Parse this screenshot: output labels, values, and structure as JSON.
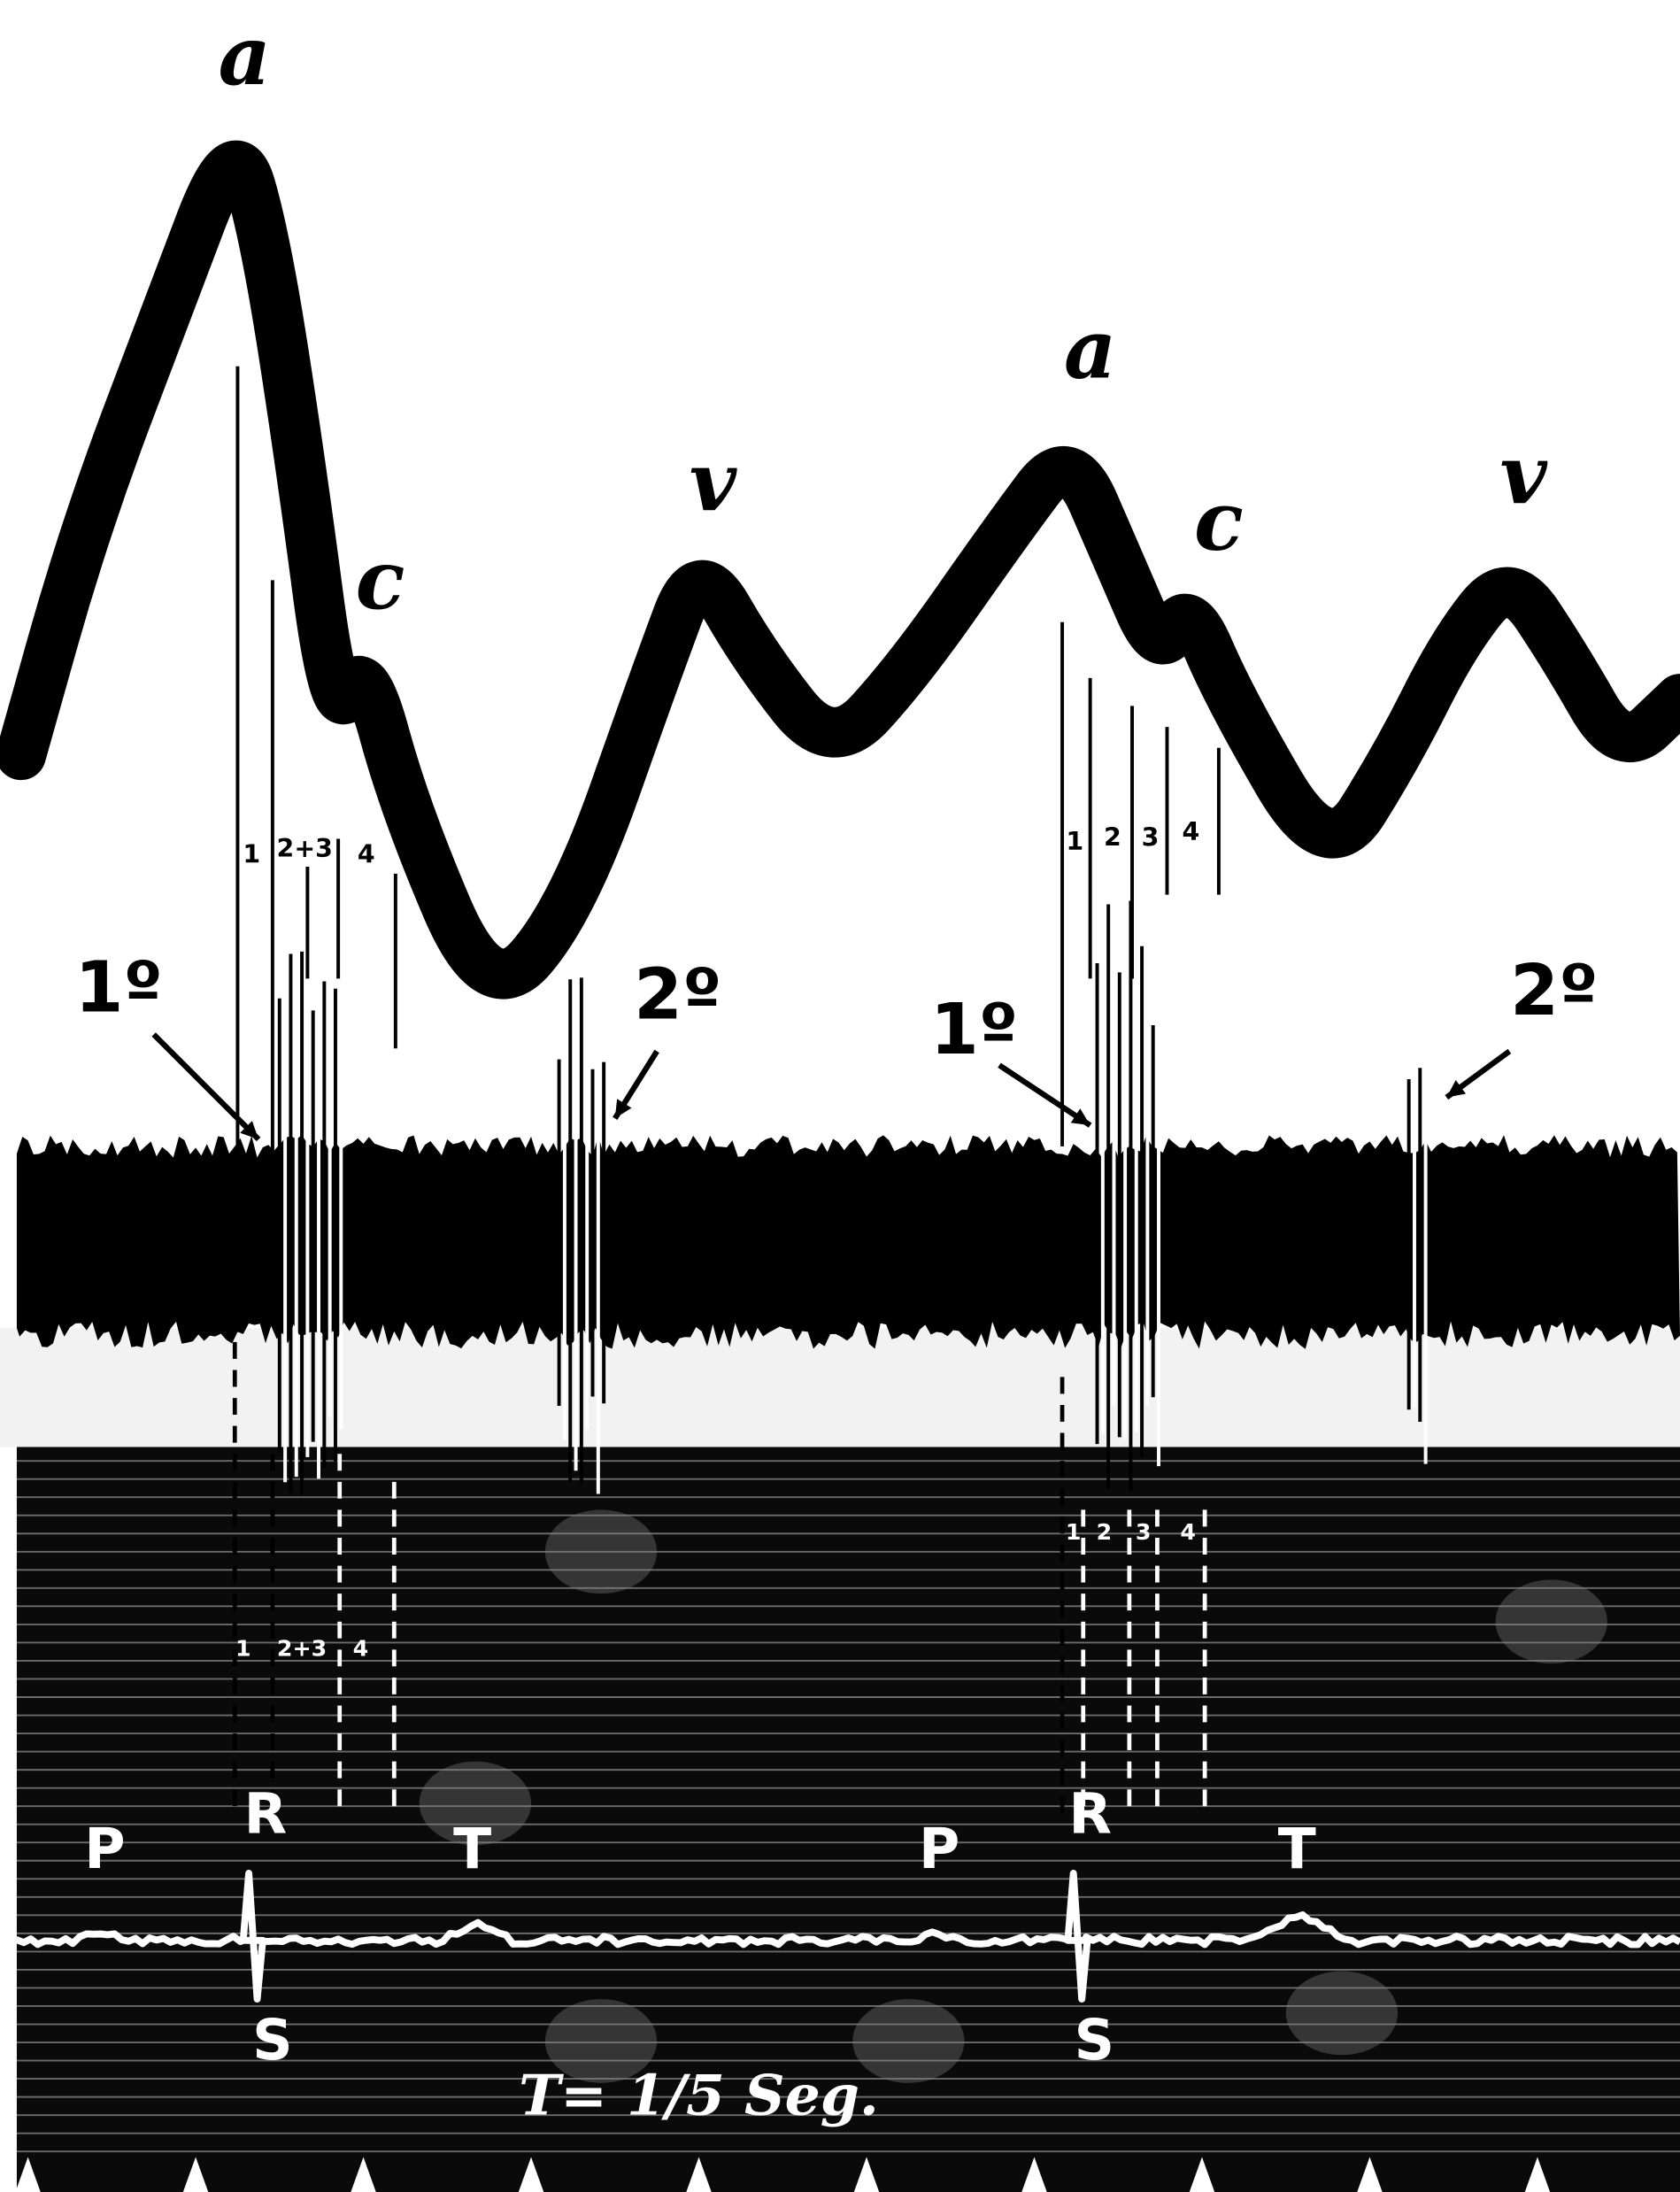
{
  "cycle_1": {
    "a": "a",
    "c": "c",
    "v": "v",
    "first_sound": "1º",
    "second_sound": "2º",
    "phase_upper": [
      "1",
      "2+3",
      "4"
    ],
    "phase_lower": [
      "1",
      "2+3",
      "4"
    ],
    "ecg": {
      "P": "P",
      "R": "R",
      "S": "S",
      "T": "T"
    }
  },
  "cycle_2": {
    "a": "a",
    "c": "c",
    "v": "v",
    "first_sound": "1º",
    "second_sound": "2º",
    "phase_upper": [
      "1",
      "2",
      "3",
      "4"
    ],
    "phase_lower": [
      "1",
      "2",
      "3",
      "4"
    ],
    "ecg": {
      "P": "P",
      "R": "R",
      "S": "S",
      "T": "T"
    }
  },
  "time_mark": "T= 1/5 Seg."
}
